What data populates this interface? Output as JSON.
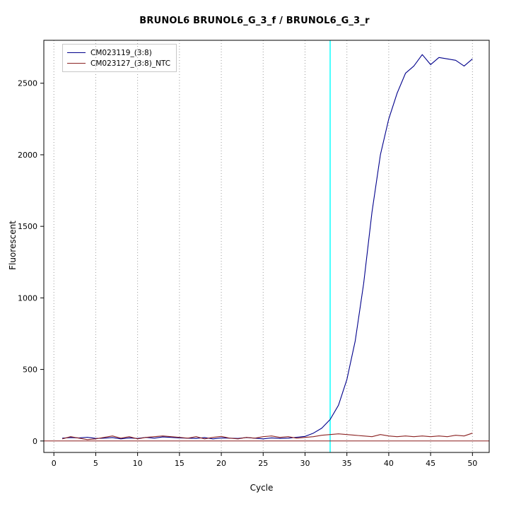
{
  "chart_data": {
    "type": "line",
    "title": "BRUNOL6  BRUNOL6_G_3_f / BRUNOL6_G_3_r",
    "xlabel": "Cycle",
    "ylabel": "Fluorescent",
    "xlim": [
      -1.2,
      52
    ],
    "ylim": [
      -80,
      2800
    ],
    "xticks": [
      0,
      5,
      10,
      15,
      20,
      25,
      30,
      35,
      40,
      45,
      50
    ],
    "yticks": [
      0,
      500,
      1000,
      1500,
      2000,
      2500
    ],
    "grid": "vertical-dotted",
    "legend_position": "top-left",
    "threshold_cycle": 33,
    "threshold_color": "#00ffff",
    "baseline_y": 0,
    "baseline_color": "#8b1a1a",
    "x": [
      1,
      2,
      3,
      4,
      5,
      6,
      7,
      8,
      9,
      10,
      11,
      12,
      13,
      14,
      15,
      16,
      17,
      18,
      19,
      20,
      21,
      22,
      23,
      24,
      25,
      26,
      27,
      28,
      29,
      30,
      31,
      32,
      33,
      34,
      35,
      36,
      37,
      38,
      39,
      40,
      41,
      42,
      43,
      44,
      45,
      46,
      47,
      48,
      49,
      50
    ],
    "series": [
      {
        "name": "CM023119_(3:8)",
        "color": "#00008b",
        "values": [
          20,
          24,
          22,
          26,
          18,
          20,
          24,
          15,
          22,
          18,
          25,
          20,
          28,
          25,
          22,
          20,
          18,
          24,
          15,
          22,
          20,
          18,
          24,
          20,
          15,
          22,
          18,
          20,
          26,
          32,
          55,
          90,
          150,
          250,
          430,
          700,
          1100,
          1600,
          2000,
          2250,
          2430,
          2570,
          2620,
          2700,
          2630,
          2680,
          2670,
          2660,
          2620,
          2670
        ]
      },
      {
        "name": "CM023127_(3:8)_NTC",
        "color": "#8b2323",
        "values": [
          15,
          30,
          20,
          10,
          15,
          25,
          35,
          20,
          30,
          15,
          25,
          30,
          35,
          30,
          25,
          20,
          30,
          15,
          25,
          32,
          20,
          15,
          25,
          20,
          30,
          35,
          25,
          30,
          20,
          25,
          30,
          40,
          45,
          50,
          45,
          40,
          35,
          30,
          45,
          35,
          30,
          35,
          30,
          35,
          30,
          35,
          30,
          40,
          35,
          55
        ]
      }
    ]
  }
}
